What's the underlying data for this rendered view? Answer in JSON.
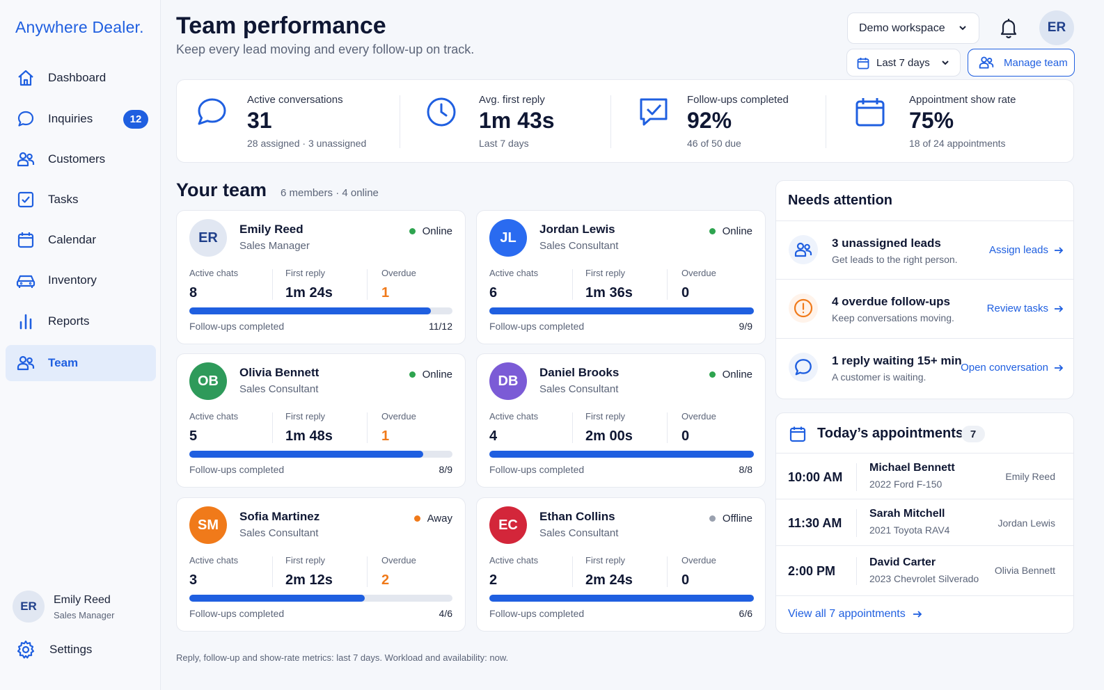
{
  "app": {
    "logo": "Anywhere Dealer."
  },
  "sidebar": {
    "items": [
      {
        "label": "Dashboard",
        "icon": "home-icon"
      },
      {
        "label": "Inquiries",
        "icon": "chat-icon",
        "badge": "12"
      },
      {
        "label": "Customers",
        "icon": "users-icon"
      },
      {
        "label": "Tasks",
        "icon": "checkbox-icon"
      },
      {
        "label": "Calendar",
        "icon": "calendar-icon"
      },
      {
        "label": "Inventory",
        "icon": "car-icon"
      },
      {
        "label": "Reports",
        "icon": "bar-chart-icon"
      },
      {
        "label": "Team",
        "icon": "team-icon",
        "active": true
      }
    ],
    "profile": {
      "initials": "ER",
      "name": "Emily Reed",
      "role": "Sales Manager"
    },
    "settings": {
      "label": "Settings",
      "icon": "gear-icon"
    }
  },
  "header": {
    "title": "Team performance",
    "subtitle": "Keep every lead moving and every follow-up on track.",
    "workspace": "Demo workspace",
    "user_initials": "ER",
    "date_range": "Last 7 days",
    "manage_team": "Manage team"
  },
  "kpis": [
    {
      "icon": "chat-icon",
      "label": "Active conversations",
      "value": "31",
      "sub": "28 assigned · 3 unassigned"
    },
    {
      "icon": "clock-icon",
      "label": "Avg. first reply",
      "value": "1m 43s",
      "sub": "Last 7 days"
    },
    {
      "icon": "checked-message-icon",
      "label": "Follow-ups completed",
      "value": "92%",
      "sub": "46 of 50 due"
    },
    {
      "icon": "calendar-icon",
      "label": "Appointment show rate",
      "value": "75%",
      "sub": "18 of 24 appointments"
    }
  ],
  "team": {
    "title": "Your team",
    "meta": "6 members  ·  4 online",
    "stat_labels": {
      "chats": "Active chats",
      "reply": "First reply",
      "overdue": "Overdue",
      "followups": "Follow-ups completed"
    },
    "members": [
      {
        "initials": "ER",
        "name": "Emily Reed",
        "role": "Sales Manager",
        "status": "Online",
        "status_color": "#2ea44f",
        "avatar_bg": "#e1e7f2",
        "avatar_fg": "#1f3f8a",
        "chats": "8",
        "reply": "1m 24s",
        "overdue": "1",
        "done": 11,
        "due": 12,
        "count": "11/12"
      },
      {
        "initials": "JL",
        "name": "Jordan Lewis",
        "role": "Sales Consultant",
        "status": "Online",
        "status_color": "#2ea44f",
        "avatar_bg": "#2a6bf0",
        "avatar_fg": "#ffffff",
        "chats": "6",
        "reply": "1m 36s",
        "overdue": "0",
        "done": 9,
        "due": 9,
        "count": "9/9"
      },
      {
        "initials": "OB",
        "name": "Olivia Bennett",
        "role": "Sales Consultant",
        "status": "Online",
        "status_color": "#2ea44f",
        "avatar_bg": "#2e9a5a",
        "avatar_fg": "#ffffff",
        "chats": "5",
        "reply": "1m 48s",
        "overdue": "1",
        "done": 8,
        "due": 9,
        "count": "8/9"
      },
      {
        "initials": "DB",
        "name": "Daniel Brooks",
        "role": "Sales Consultant",
        "status": "Online",
        "status_color": "#2ea44f",
        "avatar_bg": "#7b5bd6",
        "avatar_fg": "#ffffff",
        "chats": "4",
        "reply": "2m 00s",
        "overdue": "0",
        "done": 8,
        "due": 8,
        "count": "8/8"
      },
      {
        "initials": "SM",
        "name": "Sofia Martinez",
        "role": "Sales Consultant",
        "status": "Away",
        "status_color": "#f07a1a",
        "avatar_bg": "#f07a1a",
        "avatar_fg": "#ffffff",
        "chats": "3",
        "reply": "2m 12s",
        "overdue": "2",
        "done": 4,
        "due": 6,
        "count": "4/6"
      },
      {
        "initials": "EC",
        "name": "Ethan Collins",
        "role": "Sales Consultant",
        "status": "Offline",
        "status_color": "#9aa1af",
        "avatar_bg": "#d3263a",
        "avatar_fg": "#ffffff",
        "chats": "2",
        "reply": "2m 24s",
        "overdue": "0",
        "done": 6,
        "due": 6,
        "count": "6/6"
      }
    ]
  },
  "attention": {
    "title": "Needs attention",
    "items": [
      {
        "icon": "users-icon",
        "title": "3 unassigned leads",
        "sub": "Get leads to the right person.",
        "link": "Assign leads"
      },
      {
        "icon": "alert-icon",
        "title": "4 overdue follow-ups",
        "sub": "Keep conversations moving.",
        "link": "Review tasks"
      },
      {
        "icon": "chat-icon",
        "title": "1 reply waiting 15+ min",
        "sub": "A customer is waiting.",
        "link": "Open conversation"
      }
    ]
  },
  "appointments": {
    "title": "Today’s appointments",
    "count": "7",
    "items": [
      {
        "time": "10:00 AM",
        "customer": "Michael Bennett",
        "vehicle": "2022 Ford F-150",
        "rep": "Emily Reed"
      },
      {
        "time": "11:30 AM",
        "customer": "Sarah Mitchell",
        "vehicle": "2021 Toyota RAV4",
        "rep": "Jordan Lewis"
      },
      {
        "time": "2:00 PM",
        "customer": "David Carter",
        "vehicle": "2023 Chevrolet Silverado",
        "rep": "Olivia Bennett"
      }
    ],
    "view_all": "View all 7 appointments"
  },
  "footnote": "Reply, follow-up and show-rate metrics: last 7 days. Workload and availability: now.",
  "colors": {
    "accent": "#1f5fe0",
    "warn": "#f07a1a",
    "online": "#2ea44f"
  }
}
